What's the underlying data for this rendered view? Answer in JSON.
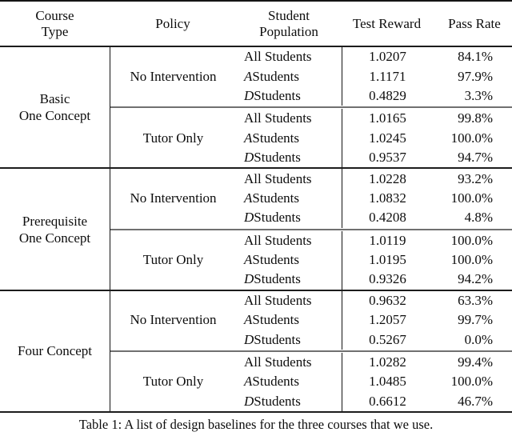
{
  "table": {
    "headers": {
      "course_type": {
        "line1": "Course",
        "line2": "Type"
      },
      "policy": "Policy",
      "student_population": {
        "line1": "Student",
        "line2": "Population"
      },
      "test_reward": "Test Reward",
      "pass_rate": "Pass Rate"
    },
    "groups": [
      {
        "course": {
          "line1": "Basic",
          "line2": "One Concept"
        },
        "blocks": [
          {
            "policy": "No Intervention",
            "rows": [
              {
                "pop_italic": "",
                "pop_text": "All Students",
                "reward": "1.0207",
                "rate": "84.1%"
              },
              {
                "pop_italic": "A",
                "pop_text": " Students",
                "reward": "1.1171",
                "rate": "97.9%"
              },
              {
                "pop_italic": "D",
                "pop_text": " Students",
                "reward": "0.4829",
                "rate": "3.3%"
              }
            ]
          },
          {
            "policy": "Tutor Only",
            "rows": [
              {
                "pop_italic": "",
                "pop_text": "All Students",
                "reward": "1.0165",
                "rate": "99.8%"
              },
              {
                "pop_italic": "A",
                "pop_text": " Students",
                "reward": "1.0245",
                "rate": "100.0%"
              },
              {
                "pop_italic": "D",
                "pop_text": " Students",
                "reward": "0.9537",
                "rate": "94.7%"
              }
            ]
          }
        ]
      },
      {
        "course": {
          "line1": "Prerequisite",
          "line2": "One Concept"
        },
        "blocks": [
          {
            "policy": "No Intervention",
            "rows": [
              {
                "pop_italic": "",
                "pop_text": "All Students",
                "reward": "1.0228",
                "rate": "93.2%"
              },
              {
                "pop_italic": "A",
                "pop_text": " Students",
                "reward": "1.0832",
                "rate": "100.0%"
              },
              {
                "pop_italic": "D",
                "pop_text": " Students",
                "reward": "0.4208",
                "rate": "4.8%"
              }
            ]
          },
          {
            "policy": "Tutor Only",
            "rows": [
              {
                "pop_italic": "",
                "pop_text": "All Students",
                "reward": "1.0119",
                "rate": "100.0%"
              },
              {
                "pop_italic": "A",
                "pop_text": " Students",
                "reward": "1.0195",
                "rate": "100.0%"
              },
              {
                "pop_italic": "D",
                "pop_text": " Students",
                "reward": "0.9326",
                "rate": "94.2%"
              }
            ]
          }
        ]
      },
      {
        "course": {
          "line1": "Four Concept",
          "line2": ""
        },
        "blocks": [
          {
            "policy": "No Intervention",
            "rows": [
              {
                "pop_italic": "",
                "pop_text": "All Students",
                "reward": "0.9632",
                "rate": "63.3%"
              },
              {
                "pop_italic": "A",
                "pop_text": " Students",
                "reward": "1.2057",
                "rate": "99.7%"
              },
              {
                "pop_italic": "D",
                "pop_text": " Students",
                "reward": "0.5267",
                "rate": "0.0%"
              }
            ]
          },
          {
            "policy": "Tutor Only",
            "rows": [
              {
                "pop_italic": "",
                "pop_text": "All Students",
                "reward": "1.0282",
                "rate": "99.4%"
              },
              {
                "pop_italic": "A",
                "pop_text": " Students",
                "reward": "1.0485",
                "rate": "100.0%"
              },
              {
                "pop_italic": "D",
                "pop_text": " Students",
                "reward": "0.6612",
                "rate": "46.7%"
              }
            ]
          }
        ]
      }
    ]
  },
  "caption": "Table 1: A list of design baselines for the three courses that we use.",
  "colors": {
    "rule": "#1c1c1c",
    "midrule": "#707070",
    "text": "#0d0d0d",
    "background": "#ffffff"
  }
}
